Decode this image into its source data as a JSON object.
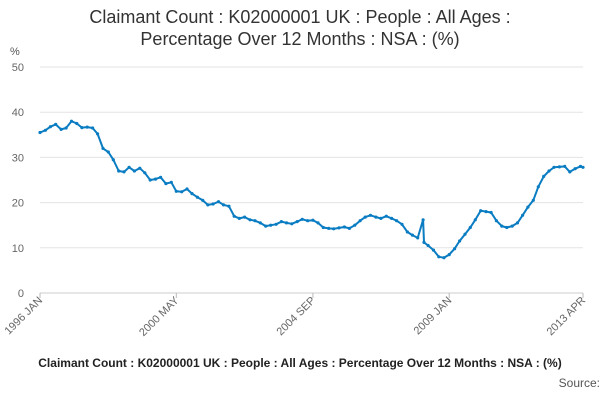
{
  "chart_data": {
    "type": "line",
    "title_line1": "Claimant Count : K02000001 UK : People : All Ages :",
    "title_line2": "Percentage Over 12 Months : NSA : (%)",
    "ylabel": "%",
    "xlabel": "",
    "ylim": [
      0,
      50
    ],
    "y_ticks": [
      0,
      10,
      20,
      30,
      40,
      50
    ],
    "x_range": [
      1996.0,
      2013.25
    ],
    "x_ticks": [
      {
        "label": "1996 JAN",
        "value": 1996.0
      },
      {
        "label": "2000 MAY",
        "value": 2000.33
      },
      {
        "label": "2004 SEP",
        "value": 2004.67
      },
      {
        "label": "2009 JAN",
        "value": 2009.0
      },
      {
        "label": "2013 APR",
        "value": 2013.25
      }
    ],
    "grid": true,
    "legend": "none",
    "color": "#0a7cc2",
    "series": [
      {
        "values": [
          [
            1996.0,
            35.5
          ],
          [
            1996.17,
            36.0
          ],
          [
            1996.33,
            36.8
          ],
          [
            1996.5,
            37.3
          ],
          [
            1996.67,
            36.2
          ],
          [
            1996.83,
            36.5
          ],
          [
            1997.0,
            38.0
          ],
          [
            1997.17,
            37.5
          ],
          [
            1997.33,
            36.6
          ],
          [
            1997.5,
            36.7
          ],
          [
            1997.67,
            36.5
          ],
          [
            1997.83,
            35.2
          ],
          [
            1998.0,
            32.0
          ],
          [
            1998.17,
            31.2
          ],
          [
            1998.33,
            29.5
          ],
          [
            1998.5,
            27.0
          ],
          [
            1998.67,
            26.8
          ],
          [
            1998.83,
            27.8
          ],
          [
            1999.0,
            27.0
          ],
          [
            1999.17,
            27.6
          ],
          [
            1999.33,
            26.6
          ],
          [
            1999.5,
            25.0
          ],
          [
            1999.67,
            25.2
          ],
          [
            1999.83,
            25.6
          ],
          [
            2000.0,
            24.2
          ],
          [
            2000.17,
            24.5
          ],
          [
            2000.33,
            22.5
          ],
          [
            2000.5,
            22.4
          ],
          [
            2000.67,
            23.0
          ],
          [
            2000.83,
            22.0
          ],
          [
            2001.0,
            21.2
          ],
          [
            2001.17,
            20.5
          ],
          [
            2001.33,
            19.5
          ],
          [
            2001.5,
            19.7
          ],
          [
            2001.67,
            20.2
          ],
          [
            2001.83,
            19.5
          ],
          [
            2002.0,
            19.2
          ],
          [
            2002.17,
            17.0
          ],
          [
            2002.33,
            16.5
          ],
          [
            2002.5,
            16.8
          ],
          [
            2002.67,
            16.2
          ],
          [
            2002.83,
            16.0
          ],
          [
            2003.0,
            15.5
          ],
          [
            2003.17,
            14.8
          ],
          [
            2003.33,
            15.0
          ],
          [
            2003.5,
            15.2
          ],
          [
            2003.67,
            15.8
          ],
          [
            2003.83,
            15.5
          ],
          [
            2004.0,
            15.3
          ],
          [
            2004.17,
            15.8
          ],
          [
            2004.33,
            16.3
          ],
          [
            2004.5,
            16.0
          ],
          [
            2004.67,
            16.1
          ],
          [
            2004.83,
            15.5
          ],
          [
            2005.0,
            14.5
          ],
          [
            2005.17,
            14.3
          ],
          [
            2005.33,
            14.2
          ],
          [
            2005.5,
            14.4
          ],
          [
            2005.67,
            14.6
          ],
          [
            2005.83,
            14.3
          ],
          [
            2006.0,
            15.0
          ],
          [
            2006.17,
            16.0
          ],
          [
            2006.33,
            16.8
          ],
          [
            2006.5,
            17.2
          ],
          [
            2006.67,
            16.8
          ],
          [
            2006.83,
            16.5
          ],
          [
            2007.0,
            17.0
          ],
          [
            2007.17,
            16.5
          ],
          [
            2007.33,
            16.0
          ],
          [
            2007.5,
            15.2
          ],
          [
            2007.67,
            13.5
          ],
          [
            2007.83,
            12.8
          ],
          [
            2008.0,
            12.2
          ],
          [
            2008.17,
            16.2
          ],
          [
            2008.2,
            11.2
          ],
          [
            2008.33,
            10.5
          ],
          [
            2008.5,
            9.5
          ],
          [
            2008.67,
            8.0
          ],
          [
            2008.83,
            7.8
          ],
          [
            2009.0,
            8.5
          ],
          [
            2009.17,
            9.8
          ],
          [
            2009.33,
            11.5
          ],
          [
            2009.5,
            13.0
          ],
          [
            2009.67,
            14.5
          ],
          [
            2009.83,
            16.2
          ],
          [
            2010.0,
            18.2
          ],
          [
            2010.17,
            18.0
          ],
          [
            2010.33,
            17.8
          ],
          [
            2010.5,
            16.0
          ],
          [
            2010.67,
            14.8
          ],
          [
            2010.83,
            14.5
          ],
          [
            2011.0,
            14.8
          ],
          [
            2011.17,
            15.5
          ],
          [
            2011.33,
            17.2
          ],
          [
            2011.5,
            19.0
          ],
          [
            2011.67,
            20.5
          ],
          [
            2011.83,
            23.5
          ],
          [
            2012.0,
            25.8
          ],
          [
            2012.17,
            27.0
          ],
          [
            2012.33,
            27.8
          ],
          [
            2012.5,
            27.9
          ],
          [
            2012.67,
            28.0
          ],
          [
            2012.83,
            26.8
          ],
          [
            2013.0,
            27.5
          ],
          [
            2013.17,
            28.0
          ],
          [
            2013.25,
            27.8
          ]
        ]
      }
    ]
  },
  "footer": {
    "series_title": "Claimant Count : K02000001 UK : People : All Ages : Percentage Over 12 Months : NSA : (%)",
    "source": "Source:"
  }
}
